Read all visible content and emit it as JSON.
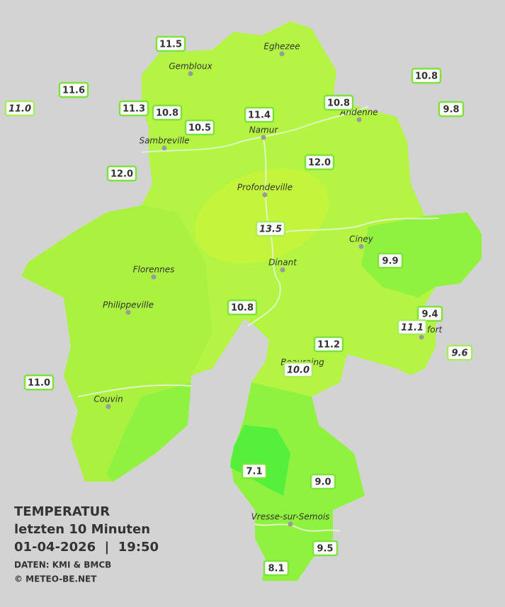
{
  "legend": {
    "title": "TEMPERATUR",
    "period": "letzten 10 Minuten",
    "datetime": "01-04-2026  |  19:50",
    "source": "DATEN: KMI & BMCB",
    "copyright": "© METEO-BE.NET"
  },
  "cities": [
    "Eghezee",
    "Gembloux",
    "Andenne",
    "Namur",
    "Sambreville",
    "Profondeville",
    "Ciney",
    "Dinant",
    "Florennes",
    "Philippeville",
    "Rochefort",
    "Beauraing",
    "Couvin",
    "Vresse-sur-Semois"
  ],
  "stations": [
    {
      "temp": "11.5",
      "italic": false
    },
    {
      "temp": "11.6",
      "italic": false
    },
    {
      "temp": "11.0",
      "italic": true
    },
    {
      "temp": "11.3",
      "italic": false
    },
    {
      "temp": "10.8",
      "italic": false
    },
    {
      "temp": "10.5",
      "italic": false
    },
    {
      "temp": "11.4",
      "italic": false
    },
    {
      "temp": "10.8",
      "italic": false
    },
    {
      "temp": "10.8",
      "italic": false
    },
    {
      "temp": "9.8",
      "italic": false
    },
    {
      "temp": "12.0",
      "italic": false
    },
    {
      "temp": "12.0",
      "italic": false
    },
    {
      "temp": "13.5",
      "italic": true
    },
    {
      "temp": "9.9",
      "italic": false
    },
    {
      "temp": "10.8",
      "italic": false
    },
    {
      "temp": "9.4",
      "italic": false
    },
    {
      "temp": "11.1",
      "italic": true
    },
    {
      "temp": "11.2",
      "italic": false
    },
    {
      "temp": "10.0",
      "italic": true
    },
    {
      "temp": "9.6",
      "italic": true
    },
    {
      "temp": "11.0",
      "italic": false
    },
    {
      "temp": "7.1",
      "italic": false
    },
    {
      "temp": "9.0",
      "italic": false
    },
    {
      "temp": "9.5",
      "italic": false
    },
    {
      "temp": "8.1",
      "italic": false
    }
  ]
}
